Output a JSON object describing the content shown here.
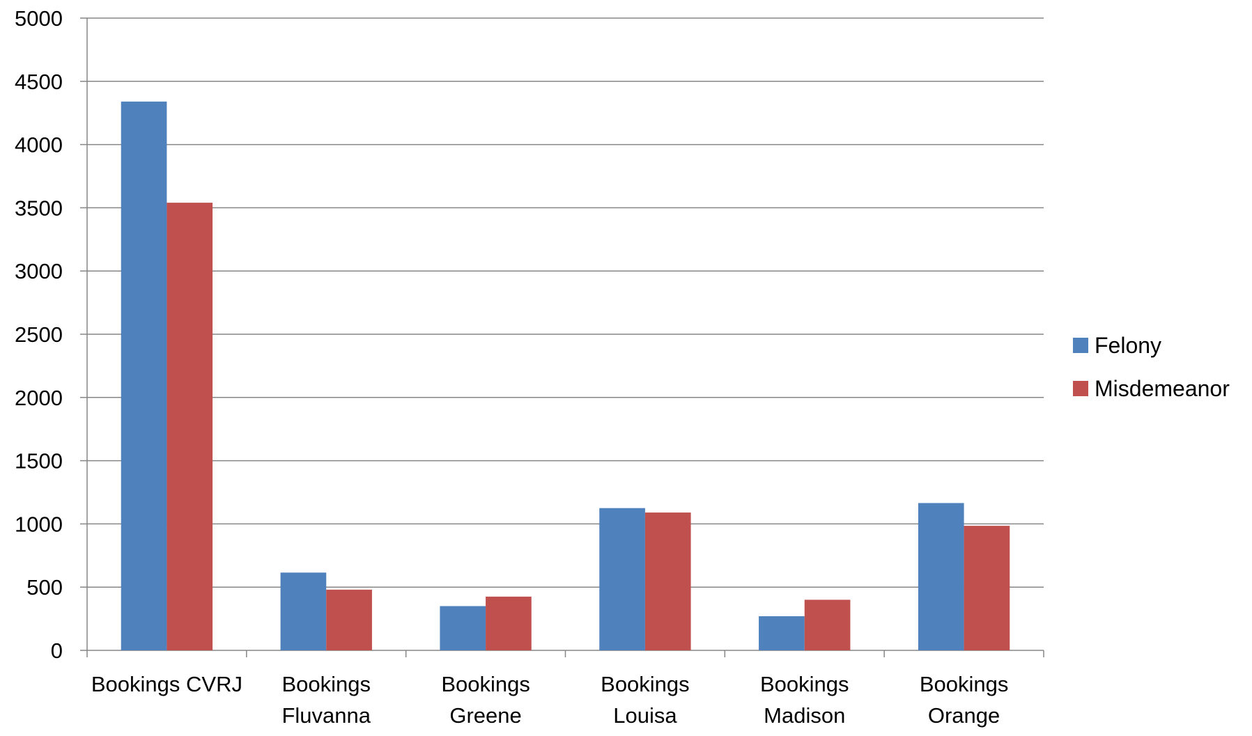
{
  "chart_data": {
    "type": "bar",
    "categories": [
      [
        "Bookings CVRJ"
      ],
      [
        "Bookings",
        "Fluvanna"
      ],
      [
        "Bookings",
        "Greene"
      ],
      [
        "Bookings",
        "Louisa"
      ],
      [
        "Bookings",
        "Madison"
      ],
      [
        "Bookings",
        "Orange"
      ]
    ],
    "series": [
      {
        "name": "Felony",
        "color": "#4F81BD",
        "values": [
          4340,
          615,
          350,
          1125,
          270,
          1165
        ]
      },
      {
        "name": "Misdemeanor",
        "color": "#C0504D",
        "values": [
          3540,
          480,
          425,
          1090,
          400,
          985
        ]
      }
    ],
    "ylim": [
      0,
      5000
    ],
    "yticks": [
      0,
      500,
      1000,
      1500,
      2000,
      2500,
      3000,
      3500,
      4000,
      4500,
      5000
    ],
    "grid": true,
    "legend_position": "right"
  }
}
